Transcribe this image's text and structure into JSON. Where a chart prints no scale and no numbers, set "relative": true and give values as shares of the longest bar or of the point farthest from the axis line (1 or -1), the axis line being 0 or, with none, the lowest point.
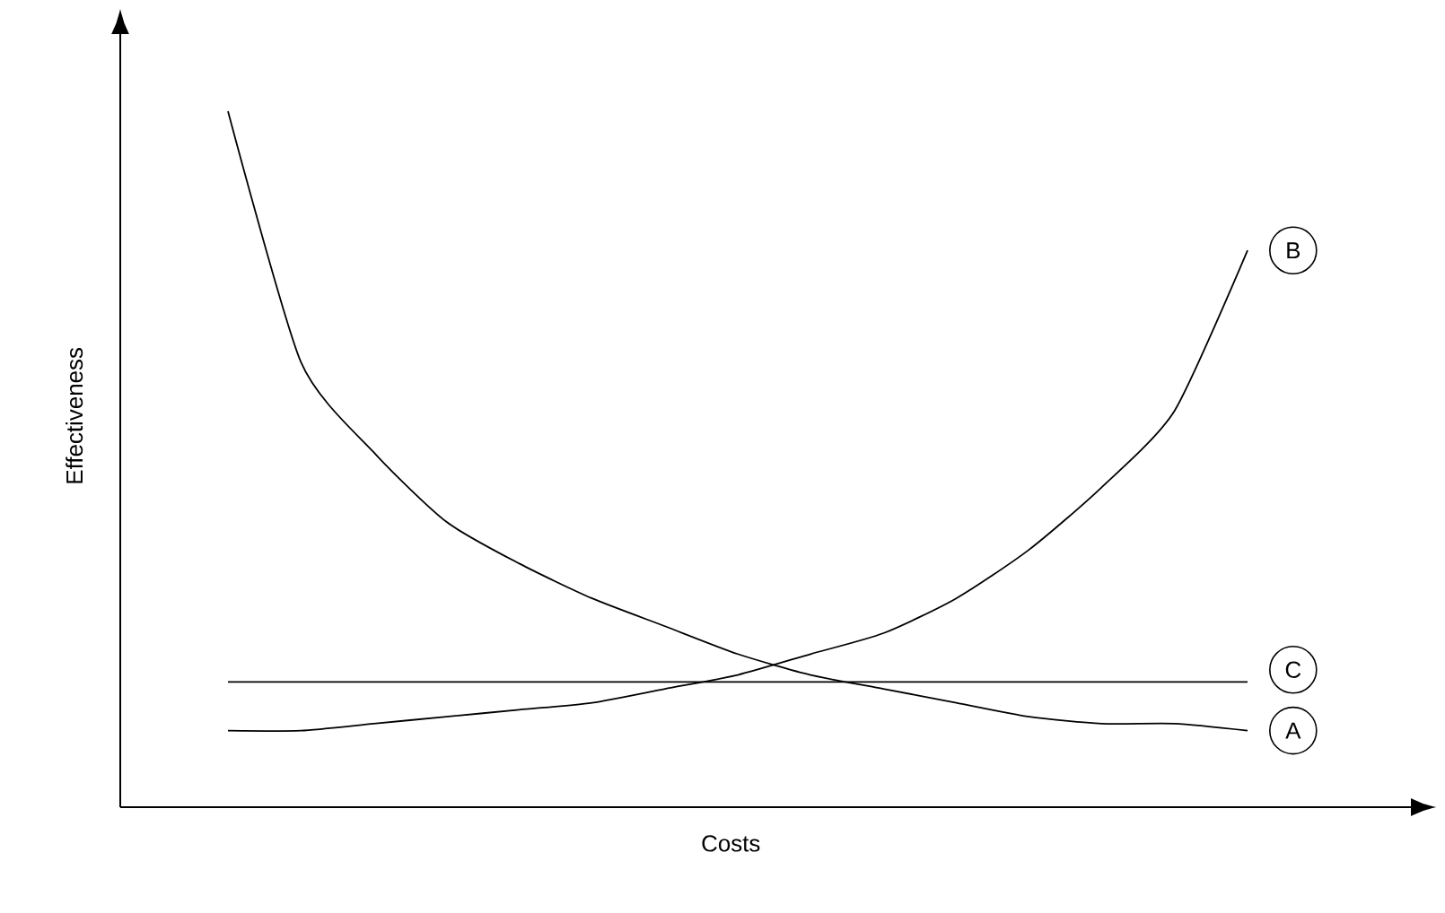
{
  "chart_data": {
    "type": "line",
    "relative": true,
    "xlabel": "Costs",
    "ylabel": "Effectiveness",
    "legend": "right",
    "marker": "none",
    "line_style": "solid",
    "categories": [
      null,
      null,
      null,
      null,
      null,
      null,
      null,
      null,
      null,
      null,
      null,
      null,
      null,
      null,
      null
    ],
    "series": [
      {
        "name": "A",
        "color": "#000000",
        "values": [
          1.0,
          0.64,
          0.51,
          0.41,
          0.35,
          0.3,
          0.26,
          0.22,
          0.19,
          0.17,
          0.15,
          0.13,
          0.12,
          0.12,
          0.11
        ]
      },
      {
        "name": "B",
        "color": "#000000",
        "values": [
          0.11,
          0.11,
          0.12,
          0.13,
          0.14,
          0.15,
          0.17,
          0.19,
          0.22,
          0.25,
          0.3,
          0.37,
          0.46,
          0.57,
          0.8
        ]
      },
      {
        "name": "C",
        "color": "#000000",
        "values": [
          0.18,
          0.18,
          0.18,
          0.18,
          0.18,
          0.18,
          0.18,
          0.18,
          0.18,
          0.18,
          0.18,
          0.18,
          0.18,
          0.18,
          0.18
        ]
      }
    ]
  }
}
